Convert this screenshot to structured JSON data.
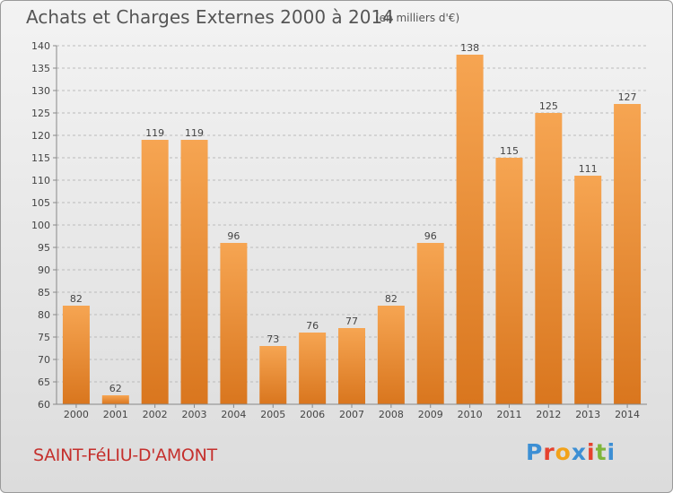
{
  "header": {
    "title": "Achats et Charges Externes 2000 à 2014",
    "subtitle": "(en milliers d'€)"
  },
  "footer": {
    "commune": "SAINT-FéLIU-D'AMONT",
    "logo_text": "Proxiti",
    "logo_colors": [
      "#3d8fd4",
      "#e6422e",
      "#f2a21a",
      "#3d8fd4",
      "#e6422e",
      "#7fb53a",
      "#3d8fd4"
    ]
  },
  "colors": {
    "bar_top": "#f6a552",
    "bar_bottom": "#d9761e",
    "grid": "#bbbbbb",
    "axis": "#888888"
  },
  "chart_data": {
    "type": "bar",
    "title": "Achats et Charges Externes 2000 à 2014",
    "subtitle": "(en milliers d'€)",
    "categories": [
      "2000",
      "2001",
      "2002",
      "2003",
      "2004",
      "2005",
      "2006",
      "2007",
      "2008",
      "2009",
      "2010",
      "2011",
      "2012",
      "2013",
      "2014"
    ],
    "values": [
      82,
      62,
      119,
      119,
      96,
      73,
      76,
      77,
      82,
      96,
      138,
      115,
      125,
      111,
      127
    ],
    "ylim": [
      60,
      140
    ],
    "yticks": [
      60,
      65,
      70,
      75,
      80,
      85,
      90,
      95,
      100,
      105,
      110,
      115,
      120,
      125,
      130,
      135,
      140
    ],
    "grid": true,
    "data_labels": true
  }
}
